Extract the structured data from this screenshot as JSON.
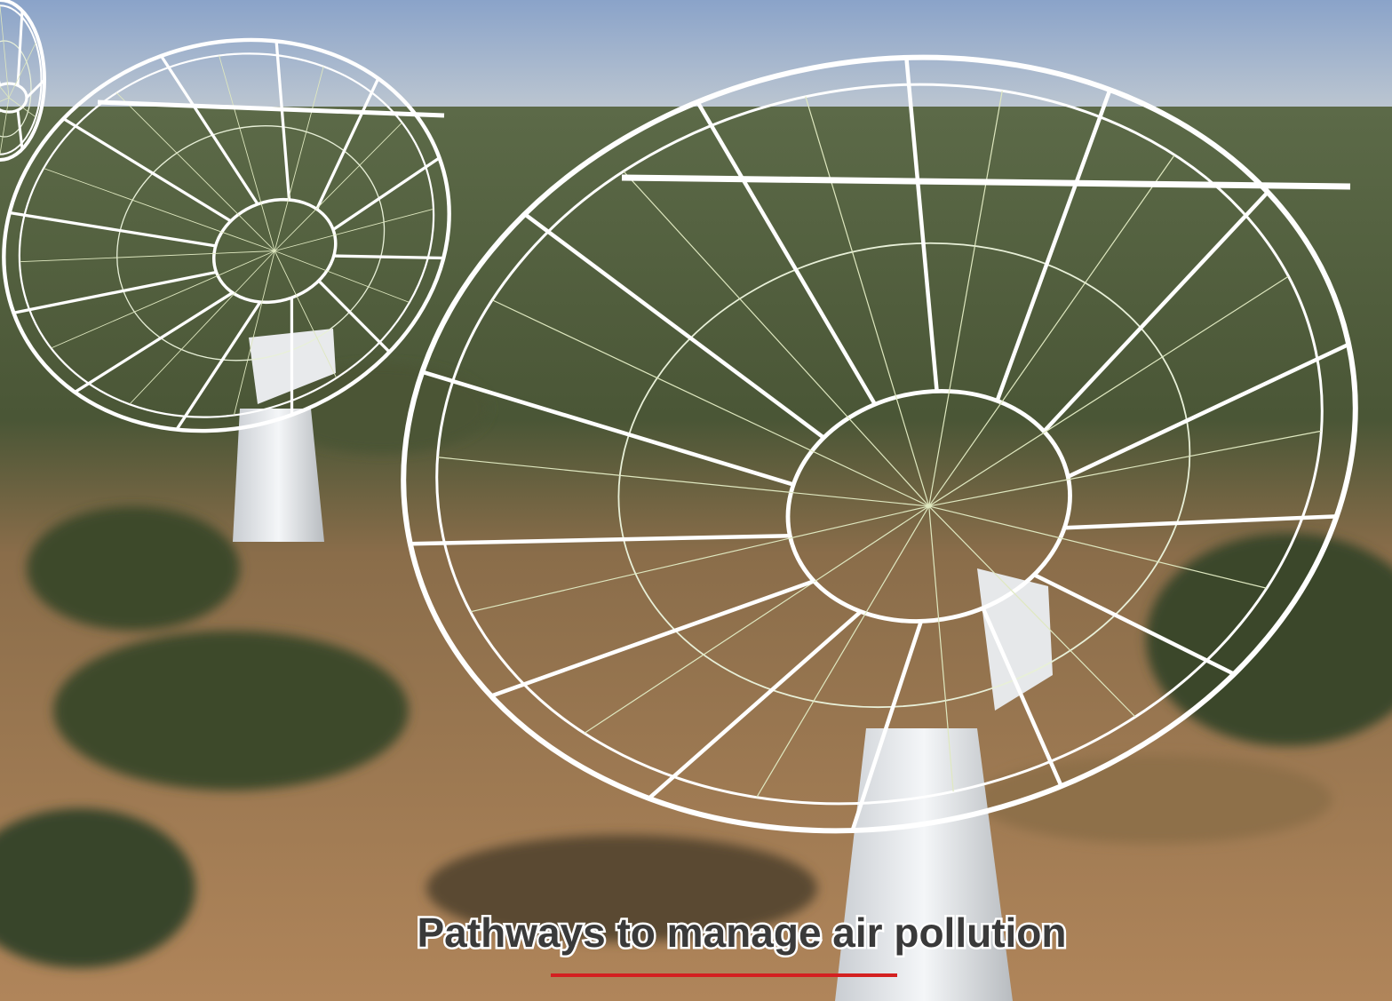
{
  "caption": "Pathways to manage air pollution"
}
